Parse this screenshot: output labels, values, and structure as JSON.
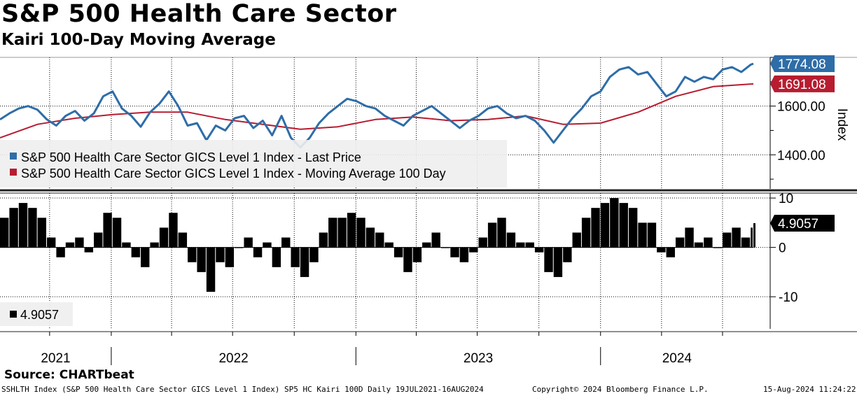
{
  "header": {
    "title": "S&P 500 Health Care Sector",
    "subtitle": "Kairi 100-Day Moving Average"
  },
  "source": "Source: CHARTbeat",
  "footer": {
    "left": "SSHLTH Index (S&P 500 Health Care Sector GICS Level 1 Index) SP5 HC Kairi 100D  Daily 19JUL2021-16AUG2024",
    "center": "Copyright© 2024 Bloomberg Finance L.P.",
    "right": "15-Aug-2024 11:24:22"
  },
  "colors": {
    "price": "#2e6da8",
    "moving_average": "#b71c30",
    "kairi": "#000000",
    "grid": "#000000",
    "legend_bg": "#eeeeee"
  },
  "chart_data": [
    {
      "type": "line",
      "panel": "price",
      "ylabel": "Index",
      "y_ticks": [
        "1600.00",
        "1400.00"
      ],
      "y_tick_values": [
        1600,
        1400
      ],
      "ylim": [
        1260,
        1800
      ],
      "x_range": [
        "2021-07-19",
        "2024-08-16"
      ],
      "legend": [
        "S&P 500 Health Care Sector GICS Level 1 Index - Last Price",
        "S&P 500 Health Care Sector GICS Level 1 Index - Moving Average 100 Day"
      ],
      "last_labels": {
        "price": "1774.08",
        "moving_average": "1691.08"
      },
      "last_values": {
        "price": 1774.08,
        "moving_average": 1691.08
      },
      "series": [
        {
          "name": "S&P 500 Health Care Sector GICS Level 1 Index - Last Price",
          "x": [
            "2021-07-19",
            "2021-08-02",
            "2021-08-16",
            "2021-08-30",
            "2021-09-13",
            "2021-09-27",
            "2021-10-11",
            "2021-10-25",
            "2021-11-08",
            "2021-11-22",
            "2021-12-06",
            "2021-12-20",
            "2022-01-03",
            "2022-01-17",
            "2022-01-31",
            "2022-02-14",
            "2022-02-28",
            "2022-03-14",
            "2022-03-28",
            "2022-04-11",
            "2022-04-25",
            "2022-05-09",
            "2022-05-23",
            "2022-06-06",
            "2022-06-20",
            "2022-07-04",
            "2022-07-18",
            "2022-08-01",
            "2022-08-15",
            "2022-08-29",
            "2022-09-12",
            "2022-09-26",
            "2022-10-10",
            "2022-10-24",
            "2022-11-07",
            "2022-11-21",
            "2022-12-05",
            "2022-12-19",
            "2023-01-02",
            "2023-01-16",
            "2023-01-30",
            "2023-02-13",
            "2023-02-27",
            "2023-03-13",
            "2023-03-27",
            "2023-04-10",
            "2023-04-24",
            "2023-05-08",
            "2023-05-22",
            "2023-06-05",
            "2023-06-19",
            "2023-07-03",
            "2023-07-17",
            "2023-07-31",
            "2023-08-14",
            "2023-08-28",
            "2023-09-11",
            "2023-09-25",
            "2023-10-09",
            "2023-10-23",
            "2023-11-06",
            "2023-11-20",
            "2023-12-04",
            "2023-12-18",
            "2024-01-01",
            "2024-01-15",
            "2024-01-29",
            "2024-02-12",
            "2024-02-26",
            "2024-03-11",
            "2024-03-25",
            "2024-04-08",
            "2024-04-22",
            "2024-05-06",
            "2024-05-20",
            "2024-06-03",
            "2024-06-17",
            "2024-07-01",
            "2024-07-15",
            "2024-07-29",
            "2024-08-12",
            "2024-08-16"
          ],
          "values": [
            1545,
            1570,
            1590,
            1600,
            1585,
            1545,
            1520,
            1560,
            1580,
            1540,
            1570,
            1640,
            1660,
            1590,
            1560,
            1515,
            1575,
            1610,
            1660,
            1600,
            1520,
            1530,
            1460,
            1520,
            1500,
            1550,
            1560,
            1510,
            1540,
            1480,
            1560,
            1470,
            1430,
            1470,
            1530,
            1570,
            1600,
            1630,
            1620,
            1600,
            1590,
            1560,
            1540,
            1520,
            1560,
            1580,
            1600,
            1570,
            1540,
            1510,
            1540,
            1560,
            1590,
            1600,
            1570,
            1550,
            1560,
            1540,
            1500,
            1450,
            1500,
            1550,
            1590,
            1640,
            1660,
            1720,
            1750,
            1760,
            1730,
            1740,
            1690,
            1640,
            1660,
            1720,
            1700,
            1720,
            1710,
            1750,
            1760,
            1740,
            1770,
            1774.08
          ]
        },
        {
          "name": "S&P 500 Health Care Sector GICS Level 1 Index - Moving Average 100 Day",
          "x": [
            "2021-07-19",
            "2021-09-13",
            "2021-11-08",
            "2022-01-03",
            "2022-02-28",
            "2022-04-25",
            "2022-06-20",
            "2022-08-15",
            "2022-10-10",
            "2022-12-05",
            "2023-01-30",
            "2023-03-27",
            "2023-05-22",
            "2023-07-17",
            "2023-09-11",
            "2023-11-06",
            "2024-01-01",
            "2024-02-26",
            "2024-04-22",
            "2024-06-17",
            "2024-08-16"
          ],
          "values": [
            1470,
            1525,
            1550,
            1565,
            1575,
            1575,
            1545,
            1525,
            1505,
            1515,
            1545,
            1555,
            1540,
            1545,
            1560,
            1525,
            1530,
            1575,
            1640,
            1680,
            1691.08
          ]
        }
      ]
    },
    {
      "type": "bar",
      "panel": "kairi",
      "y_ticks": [
        "10",
        "0",
        "-10"
      ],
      "y_tick_values": [
        10,
        0,
        -10
      ],
      "ylim": [
        -16.5,
        11
      ],
      "legend": [
        "4.9057"
      ],
      "last_label": "4.9057",
      "last_value": 4.9057,
      "series": [
        {
          "name": "4.9057",
          "x": [
            "2021-07-19",
            "2021-08-02",
            "2021-08-16",
            "2021-08-30",
            "2021-09-13",
            "2021-09-27",
            "2021-10-11",
            "2021-10-25",
            "2021-11-08",
            "2021-11-22",
            "2021-12-06",
            "2021-12-20",
            "2022-01-03",
            "2022-01-17",
            "2022-01-31",
            "2022-02-14",
            "2022-02-28",
            "2022-03-14",
            "2022-03-28",
            "2022-04-11",
            "2022-04-25",
            "2022-05-09",
            "2022-05-23",
            "2022-06-06",
            "2022-06-20",
            "2022-07-04",
            "2022-07-18",
            "2022-08-01",
            "2022-08-15",
            "2022-08-29",
            "2022-09-12",
            "2022-09-26",
            "2022-10-10",
            "2022-10-24",
            "2022-11-07",
            "2022-11-21",
            "2022-12-05",
            "2022-12-19",
            "2023-01-02",
            "2023-01-16",
            "2023-01-30",
            "2023-02-13",
            "2023-02-27",
            "2023-03-13",
            "2023-03-27",
            "2023-04-10",
            "2023-04-24",
            "2023-05-08",
            "2023-05-22",
            "2023-06-05",
            "2023-06-19",
            "2023-07-03",
            "2023-07-17",
            "2023-07-31",
            "2023-08-14",
            "2023-08-28",
            "2023-09-11",
            "2023-09-25",
            "2023-10-09",
            "2023-10-23",
            "2023-11-06",
            "2023-11-20",
            "2023-12-04",
            "2023-12-18",
            "2024-01-01",
            "2024-01-15",
            "2024-01-29",
            "2024-02-12",
            "2024-02-26",
            "2024-03-11",
            "2024-03-25",
            "2024-04-08",
            "2024-04-22",
            "2024-05-06",
            "2024-05-20",
            "2024-06-03",
            "2024-06-17",
            "2024-07-01",
            "2024-07-15",
            "2024-07-29",
            "2024-08-12",
            "2024-08-16"
          ],
          "values": [
            6,
            8,
            9,
            8,
            6,
            2,
            -2,
            1,
            2,
            -1,
            3,
            7,
            6,
            1,
            -2,
            -4,
            1,
            4,
            7,
            3,
            -3,
            -5,
            -9,
            -3,
            -4,
            0,
            2,
            -2,
            1,
            -4,
            2,
            -4,
            -6,
            -3,
            3,
            6,
            6,
            7,
            6,
            4,
            3,
            1,
            -2,
            -5,
            -3,
            1,
            3,
            0,
            -2,
            -3,
            -1,
            2,
            5,
            6,
            3,
            1,
            1,
            -1,
            -5,
            -6,
            -3,
            3,
            6,
            8,
            9,
            10,
            9,
            8,
            5,
            5,
            -1,
            -2,
            2,
            4,
            1,
            2,
            0,
            3,
            4,
            2,
            4,
            4.9057
          ]
        }
      ]
    }
  ],
  "x_axis": {
    "years": [
      "2021",
      "2022",
      "2023",
      "2024"
    ]
  }
}
